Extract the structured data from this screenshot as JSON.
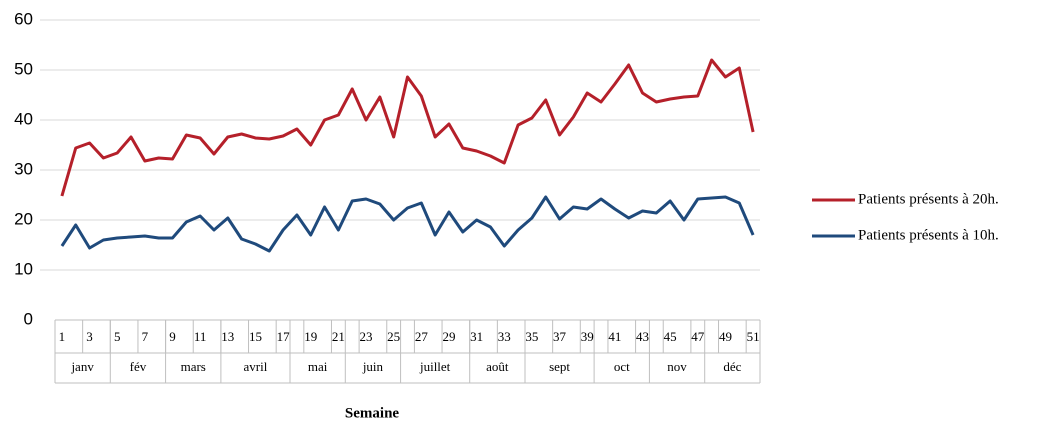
{
  "chart_data": {
    "type": "line",
    "x_label": "Semaine",
    "categories": [
      "1",
      null,
      "3",
      null,
      "5",
      null,
      "7",
      null,
      "9",
      null,
      "11",
      null,
      "13",
      null,
      "15",
      null,
      "17",
      null,
      "19",
      null,
      "21",
      null,
      "23",
      null,
      "25",
      null,
      "27",
      null,
      "29",
      null,
      "31",
      null,
      "33",
      null,
      "35",
      null,
      "37",
      null,
      "39",
      null,
      "41",
      null,
      "43",
      null,
      "45",
      null,
      "47",
      null,
      "49",
      null,
      "51"
    ],
    "month_groups": [
      {
        "label": "janv",
        "count": 4
      },
      {
        "label": "fév",
        "count": 4
      },
      {
        "label": "mars",
        "count": 4
      },
      {
        "label": "avril",
        "count": 5
      },
      {
        "label": "mai",
        "count": 4
      },
      {
        "label": "juin",
        "count": 4
      },
      {
        "label": "juillet",
        "count": 5
      },
      {
        "label": "août",
        "count": 4
      },
      {
        "label": "sept",
        "count": 5
      },
      {
        "label": "oct",
        "count": 4
      },
      {
        "label": "nov",
        "count": 4
      },
      {
        "label": "déc",
        "count": 4
      }
    ],
    "series": [
      {
        "name": "Patients présents à 20h.",
        "color": "#b5202a",
        "values": [
          24.8,
          34.4,
          35.4,
          32.4,
          33.4,
          36.6,
          31.8,
          32.4,
          32.2,
          37,
          36.4,
          33.2,
          36.6,
          37.2,
          36.4,
          36.2,
          36.8,
          38.2,
          35,
          40,
          41,
          46.2,
          40,
          44.6,
          36.6,
          48.6,
          44.8,
          36.6,
          39.2,
          34.4,
          33.8,
          32.8,
          31.4,
          39,
          40.4,
          44,
          37,
          40.6,
          45.4,
          43.6,
          47.2,
          51,
          45.4,
          43.6,
          44.2,
          44.6,
          44.8,
          52,
          48.6,
          50.4,
          37.6
        ]
      },
      {
        "name": "Patients présents à 10h.",
        "color": "#1f4a7c",
        "values": [
          14.8,
          19,
          14.4,
          16,
          16.4,
          16.6,
          16.8,
          16.4,
          16.4,
          19.6,
          20.8,
          18,
          20.4,
          16.2,
          15.2,
          13.8,
          18,
          21,
          17,
          22.6,
          18,
          23.8,
          24.2,
          23.2,
          20,
          22.4,
          23.4,
          17,
          21.6,
          17.6,
          20,
          18.6,
          14.8,
          18,
          20.4,
          24.6,
          20.2,
          22.6,
          22.2,
          24.2,
          22.2,
          20.4,
          21.8,
          21.4,
          23.8,
          20,
          24.2,
          24.4,
          24.6,
          23.4,
          17
        ]
      }
    ],
    "ylim": [
      0,
      60
    ],
    "yticks": [
      0,
      10,
      20,
      30,
      40,
      50,
      60
    ],
    "grid": true,
    "legend": "right"
  }
}
